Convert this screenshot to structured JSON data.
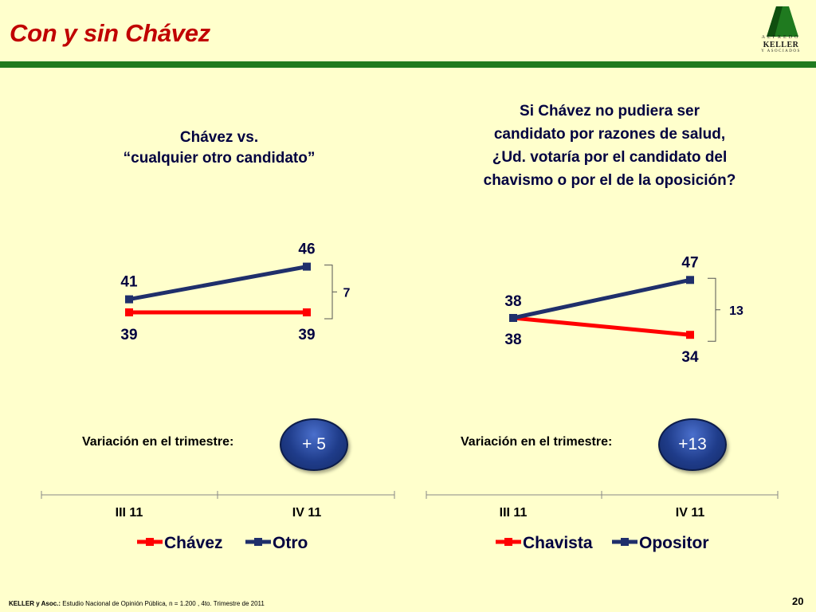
{
  "header": {
    "title": "Con y sin Chávez",
    "logo": {
      "line1": "ALFREDO",
      "line2": "KELLER",
      "line3": "Y ASOCIADOS"
    }
  },
  "colors": {
    "accent": "#C00000",
    "rule": "#1F7A1F",
    "series_red": "#FF0000",
    "series_navy": "#1F2F6B",
    "background": "#FFFFCC"
  },
  "chart_data": [
    {
      "type": "line",
      "title_line1": "Chávez vs.",
      "title_line2": "“cualquier otro candidato”",
      "categories": [
        "III 11",
        "IV 11"
      ],
      "series": [
        {
          "name": "Chávez",
          "color": "#FF0000",
          "values": [
            39,
            39
          ]
        },
        {
          "name": "Otro",
          "color": "#1F2F6B",
          "values": [
            41,
            46
          ]
        }
      ],
      "gap_label": "7",
      "variation_label": "Variación en el trimestre:",
      "variation_value": "+ 5",
      "legend": "bottom"
    },
    {
      "type": "line",
      "title_lines": [
        "Si Chávez no pudiera ser",
        "candidato por razones de salud,",
        "¿Ud. votaría por el candidato del",
        "chavismo o por el de la oposición?"
      ],
      "categories": [
        "III 11",
        "IV 11"
      ],
      "series": [
        {
          "name": "Chavista",
          "color": "#FF0000",
          "values": [
            38,
            34
          ]
        },
        {
          "name": "Opositor",
          "color": "#1F2F6B",
          "values": [
            38,
            47
          ]
        }
      ],
      "gap_label": "13",
      "variation_label": "Variación en el trimestre:",
      "variation_value": "+13",
      "legend": "bottom"
    }
  ],
  "footer": {
    "source_bold": "KELLER y Asoc.:",
    "source_text": " Estudio Nacional de Opinión Pública, n = 1.200 , 4to. Trimestre de 2011",
    "page_number": "20"
  }
}
